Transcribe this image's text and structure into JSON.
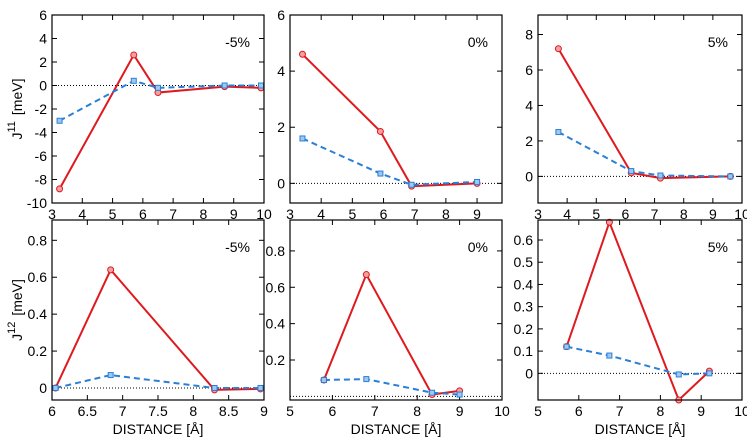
{
  "chart_data": [
    {
      "type": "line",
      "annotation": "-5%",
      "ylabel": {
        "base": "J",
        "sup": "11",
        "unit": "[meV]"
      },
      "x": [
        3.25,
        5.7,
        6.5,
        8.7,
        9.9
      ],
      "series": [
        {
          "color": "#e0191e",
          "marker": "circle",
          "dash": false,
          "values": [
            -8.8,
            2.6,
            -0.6,
            -0.1,
            -0.2
          ]
        },
        {
          "color": "#2a7fd6",
          "marker": "square",
          "dash": true,
          "values": [
            -3,
            0.4,
            -0.2,
            0.0,
            0.0
          ]
        }
      ],
      "xlim": [
        3,
        10
      ],
      "xticks": [
        3,
        4,
        5,
        6,
        7,
        8,
        9,
        10
      ],
      "ylim": [
        -10,
        6
      ],
      "yticks": [
        -10,
        -8,
        -6,
        -4,
        -2,
        0,
        2,
        4,
        6
      ],
      "hline": 0
    },
    {
      "type": "line",
      "annotation": "0%",
      "x": [
        3.4,
        5.9,
        6.9,
        9.0
      ],
      "series": [
        {
          "color": "#e0191e",
          "marker": "circle",
          "dash": false,
          "values": [
            4.6,
            1.85,
            -0.1,
            0.0
          ]
        },
        {
          "color": "#2a7fd6",
          "marker": "square",
          "dash": true,
          "values": [
            1.6,
            0.35,
            -0.05,
            0.05
          ]
        }
      ],
      "xlim": [
        3,
        9.8
      ],
      "xticks": [
        3,
        4,
        5,
        6,
        7,
        8,
        9
      ],
      "ylim": [
        -0.7,
        6
      ],
      "yticks": [
        0,
        2,
        4,
        6
      ],
      "hline": 0
    },
    {
      "type": "line",
      "annotation": "5%",
      "x": [
        3.7,
        6.2,
        7.2,
        9.6
      ],
      "series": [
        {
          "color": "#e0191e",
          "marker": "circle",
          "dash": false,
          "values": [
            7.2,
            0.2,
            -0.1,
            0.0
          ]
        },
        {
          "color": "#2a7fd6",
          "marker": "square",
          "dash": true,
          "values": [
            2.5,
            0.3,
            0.05,
            0.0
          ]
        }
      ],
      "xlim": [
        3,
        10
      ],
      "xticks": [
        3,
        4,
        5,
        6,
        7,
        8,
        9,
        10
      ],
      "ylim": [
        -1.5,
        9.1
      ],
      "yticks": [
        0,
        2,
        4,
        6,
        8
      ],
      "hline": 0
    },
    {
      "type": "line",
      "annotation": "-5%",
      "ylabel": {
        "base": "J",
        "sup": "12",
        "unit": "[meV]"
      },
      "xlabel": "DISTANCE [Å]",
      "x": [
        6.05,
        6.83,
        8.3,
        8.95
      ],
      "series": [
        {
          "color": "#e0191e",
          "marker": "circle",
          "dash": false,
          "values": [
            0.0,
            0.64,
            -0.01,
            -0.005
          ]
        },
        {
          "color": "#2a7fd6",
          "marker": "square",
          "dash": true,
          "values": [
            0.0,
            0.07,
            0.0,
            0.0
          ]
        }
      ],
      "xlim": [
        6,
        9
      ],
      "xticks": [
        6,
        6.5,
        7,
        7.5,
        8,
        8.5,
        9
      ],
      "ylim": [
        -0.065,
        0.91
      ],
      "yticks": [
        0,
        0.2,
        0.4,
        0.6,
        0.8
      ],
      "hline": 0
    },
    {
      "type": "line",
      "annotation": "0%",
      "xlabel": "DISTANCE [Å]",
      "x": [
        5.8,
        6.8,
        8.35,
        9.0
      ],
      "series": [
        {
          "color": "#e0191e",
          "marker": "circle",
          "dash": false,
          "values": [
            0.09,
            0.67,
            0.01,
            0.03
          ]
        },
        {
          "color": "#2a7fd6",
          "marker": "square",
          "dash": true,
          "values": [
            0.09,
            0.095,
            0.02,
            0.01
          ]
        }
      ],
      "xlim": [
        5,
        10
      ],
      "xticks": [
        5,
        6,
        7,
        8,
        9,
        10
      ],
      "ylim": [
        -0.02,
        0.97
      ],
      "yticks": [
        0.2,
        0.4,
        0.6,
        0.8
      ],
      "hline": 0
    },
    {
      "type": "line",
      "annotation": "5%",
      "xlabel": "DISTANCE [Å]",
      "x": [
        5.7,
        6.75,
        8.45,
        9.2
      ],
      "series": [
        {
          "color": "#e0191e",
          "marker": "circle",
          "dash": false,
          "values": [
            0.12,
            0.68,
            -0.12,
            0.01
          ]
        },
        {
          "color": "#2a7fd6",
          "marker": "square",
          "dash": true,
          "values": [
            0.12,
            0.08,
            -0.005,
            0.0
          ]
        }
      ],
      "xlim": [
        5,
        10
      ],
      "xticks": [
        5,
        6,
        7,
        8,
        9,
        10
      ],
      "ylim": [
        -0.12,
        0.69
      ],
      "yticks": [
        0,
        0.1,
        0.2,
        0.3,
        0.4,
        0.5,
        0.6
      ],
      "hline": 0
    }
  ]
}
